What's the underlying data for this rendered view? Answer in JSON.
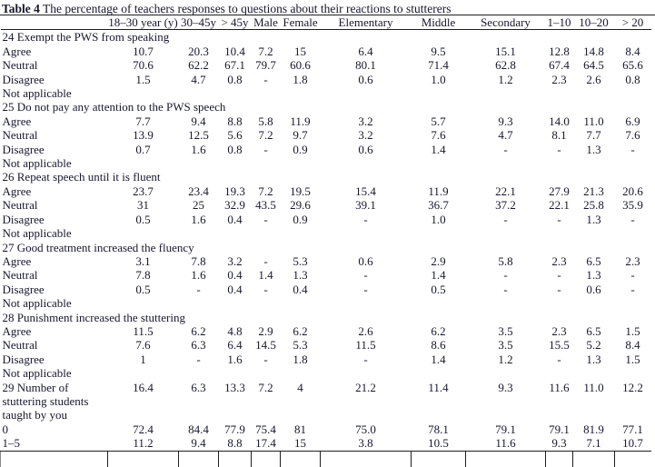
{
  "caption": {
    "label": "Table 4",
    "text": " The percentage of teachers responses to questions about their reactions to stutterers"
  },
  "table": {
    "columns": [
      "18–30 year (y)",
      "30–45y",
      "> 45y",
      "Male",
      "Female",
      "Elementary",
      "Middle",
      "Secondary",
      "1–10",
      "10–20",
      "> 20"
    ],
    "sections": [
      {
        "question": "24 Exempt the PWS from speaking",
        "rows": [
          {
            "label": "Agree",
            "values": [
              "10.7",
              "20.3",
              "10.4",
              "7.2",
              "15",
              "6.4",
              "9.5",
              "15.1",
              "12.8",
              "14.8",
              "8.4"
            ]
          },
          {
            "label": "Neutral",
            "values": [
              "70.6",
              "62.2",
              "67.1",
              "79.7",
              "60.6",
              "80.1",
              "71.4",
              "62.8",
              "67.4",
              "64.5",
              "65.6"
            ]
          },
          {
            "label": "Disagree",
            "values": [
              "1.5",
              "4.7",
              "0.8",
              "-",
              "1.8",
              "0.6",
              "1.0",
              "1.2",
              "2.3",
              "2.6",
              "0.8"
            ]
          },
          {
            "label": "Not applicable",
            "values": []
          }
        ]
      },
      {
        "question": "25 Do not pay any attention to the PWS speech",
        "rows": [
          {
            "label": "Agree",
            "values": [
              "7.7",
              "9.4",
              "8.8",
              "5.8",
              "11.9",
              "3.2",
              "5.7",
              "9.3",
              "14.0",
              "11.0",
              "6.9"
            ]
          },
          {
            "label": "Neutral",
            "values": [
              "13.9",
              "12.5",
              "5.6",
              "7.2",
              "9.7",
              "3.2",
              "7.6",
              "4.7",
              "8.1",
              "7.7",
              "7.6"
            ]
          },
          {
            "label": "Disagree",
            "values": [
              "0.7",
              "1.6",
              "0.8",
              "-",
              "0.9",
              "0.6",
              "1.4",
              "-",
              "-",
              "1.3",
              "-"
            ]
          },
          {
            "label": "Not applicable",
            "values": []
          }
        ]
      },
      {
        "question": "26 Repeat speech until it is fluent",
        "rows": [
          {
            "label": "Agree",
            "values": [
              "23.7",
              "23.4",
              "19.3",
              "7.2",
              "19.5",
              "15.4",
              "11.9",
              "22.1",
              "27.9",
              "21.3",
              "20.6"
            ]
          },
          {
            "label": "Neutral",
            "values": [
              "31",
              "25",
              "32.9",
              "43.5",
              "29.6",
              "39.1",
              "36.7",
              "37.2",
              "22.1",
              "25.8",
              "35.9"
            ]
          },
          {
            "label": "Disagree",
            "values": [
              "0.5",
              "1.6",
              "0.4",
              "-",
              "0.9",
              "-",
              "1.0",
              "-",
              "-",
              "1.3",
              "-"
            ]
          },
          {
            "label": "Not applicable",
            "values": []
          }
        ]
      },
      {
        "question": "27 Good treatment increased the fluency",
        "rows": [
          {
            "label": "Agree",
            "values": [
              "3.1",
              "7.8",
              "3.2",
              "-",
              "5.3",
              "0.6",
              "2.9",
              "5.8",
              "2.3",
              "6.5",
              "2.3"
            ]
          },
          {
            "label": "Neutral",
            "values": [
              "7.8",
              "1.6",
              "0.4",
              "1.4",
              "1.3",
              "-",
              "1.4",
              "-",
              "-",
              "1.3",
              "-"
            ]
          },
          {
            "label": "Disagree",
            "values": [
              "0.5",
              "-",
              "0.4",
              "-",
              "0.4",
              "-",
              "0.5",
              "-",
              "-",
              "0.6",
              "-"
            ]
          },
          {
            "label": "Not applicable",
            "values": []
          }
        ]
      },
      {
        "question": "28 Punishment increased the stuttering",
        "rows": [
          {
            "label": "Agree",
            "values": [
              "11.5",
              "6.2",
              "4.8",
              "2.9",
              "6.2",
              "2.6",
              "6.2",
              "3.5",
              "2.3",
              "6.5",
              "1.5"
            ]
          },
          {
            "label": "Neutral",
            "values": [
              "7.6",
              "6.3",
              "6.4",
              "14.5",
              "5.3",
              "11.5",
              "8.6",
              "3.5",
              "15.5",
              "5.2",
              "8.4"
            ]
          },
          {
            "label": "Disagree",
            "values": [
              "1",
              "-",
              "1.6",
              "-",
              "1.8",
              "-",
              "1.4",
              "1.2",
              "-",
              "1.3",
              "1.5"
            ]
          },
          {
            "label": "Not applicable",
            "values": []
          }
        ]
      },
      {
        "question": "29 Number of stuttering students taught by you",
        "question_values": [
          "16.4",
          "6.3",
          "13.3",
          "7.2",
          "4",
          "21.2",
          "11.4",
          "9.3",
          "11.6",
          "11.0",
          "12.2"
        ],
        "rows": [
          {
            "label": "0",
            "values": [
              "72.4",
              "84.4",
              "77.9",
              "75.4",
              "81",
              "75.0",
              "78.1",
              "79.1",
              "79.1",
              "81.9",
              "77.1"
            ]
          },
          {
            "label": "1–5",
            "values": [
              "11.2",
              "9.4",
              "8.8",
              "17.4",
              "15",
              "3.8",
              "10.5",
              "11.6",
              "9.3",
              "7.1",
              "10.7"
            ]
          }
        ]
      }
    ]
  }
}
